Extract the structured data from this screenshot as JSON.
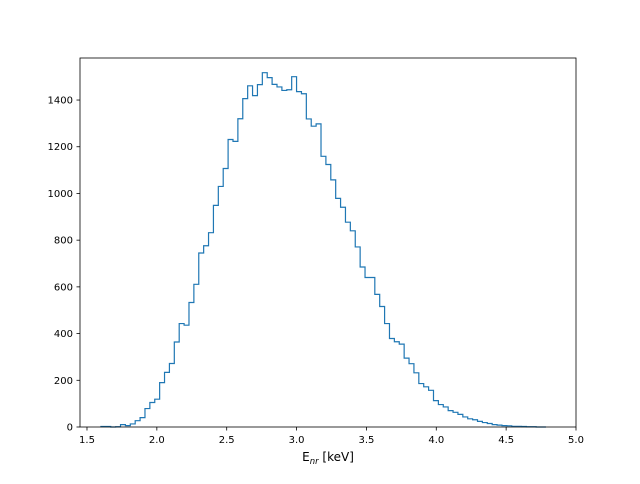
{
  "chart_data": {
    "type": "histogram",
    "title": "",
    "xlabel_main": "E",
    "xlabel_sub": "nr",
    "xlabel_rest": " [keV]",
    "ylabel": "",
    "xlim": [
      1.45,
      5.0
    ],
    "ylim": [
      0,
      1580
    ],
    "xticks": [
      1.5,
      2.0,
      2.5,
      3.0,
      3.5,
      4.0,
      4.5,
      5.0
    ],
    "xtick_labels": [
      "1.5",
      "2.0",
      "2.5",
      "3.0",
      "3.5",
      "4.0",
      "4.5",
      "5.0"
    ],
    "yticks": [
      0,
      200,
      400,
      600,
      800,
      1000,
      1200,
      1400
    ],
    "ytick_labels": [
      "0",
      "200",
      "400",
      "600",
      "800",
      "1000",
      "1200",
      "1400"
    ],
    "grid": false,
    "bin_start": 1.6,
    "bin_width": 0.035,
    "counts": [
      2,
      2,
      0,
      1,
      10,
      6,
      13,
      27,
      40,
      79,
      105,
      119,
      190,
      234,
      272,
      364,
      443,
      436,
      533,
      611,
      745,
      776,
      832,
      949,
      1030,
      1107,
      1231,
      1223,
      1320,
      1406,
      1461,
      1419,
      1466,
      1517,
      1496,
      1467,
      1456,
      1441,
      1444,
      1500,
      1436,
      1427,
      1319,
      1288,
      1298,
      1159,
      1124,
      1058,
      979,
      941,
      877,
      840,
      771,
      685,
      640,
      640,
      568,
      516,
      443,
      379,
      365,
      355,
      295,
      271,
      232,
      186,
      172,
      157,
      113,
      96,
      86,
      70,
      63,
      54,
      43,
      35,
      31,
      24,
      19,
      15,
      10,
      8,
      6,
      5,
      3,
      3,
      2,
      1,
      1,
      0,
      0
    ],
    "series_color": "#1f77b4"
  }
}
